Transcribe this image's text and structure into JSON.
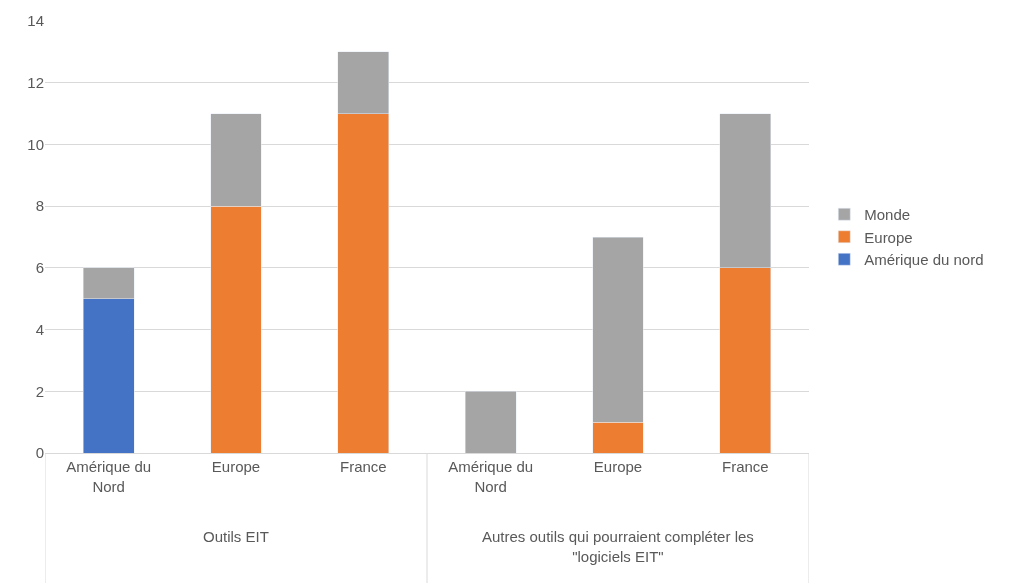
{
  "chart_data": {
    "type": "bar",
    "stacked": true,
    "categories": [
      "Amérique du Nord",
      "Europe",
      "France",
      "Amérique du Nord",
      "Europe",
      "France"
    ],
    "series": [
      {
        "name": "Amérique du nord",
        "color": "#4472c4",
        "values": [
          5,
          null,
          null,
          null,
          null,
          null
        ]
      },
      {
        "name": "Europe",
        "color": "#ed7d31",
        "values": [
          null,
          8,
          11,
          null,
          1,
          6
        ]
      },
      {
        "name": "Monde",
        "color": "#a5a5a5",
        "values": [
          1,
          3,
          2,
          2,
          6,
          5
        ]
      }
    ],
    "annotations": [
      "Outils EIT",
      "Autres outils qui pourraient compléter les \"logiciels EIT\""
    ],
    "ylim": [
      0,
      14
    ],
    "yticks": [
      0,
      2,
      4,
      6,
      8,
      10,
      12,
      14
    ],
    "grid": "y",
    "legend": "right"
  }
}
